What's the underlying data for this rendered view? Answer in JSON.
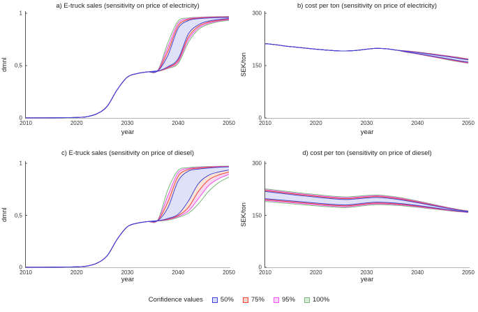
{
  "page": {
    "background": "#ffffff"
  },
  "style": {
    "y_axis_color": "#555555",
    "x_axis_color": "#b5b5b5",
    "text_color": "#222222",
    "band_fills": {
      "50%": "#dfe1f8",
      "75%": "#fae4d6",
      "95%": "#fad7f0",
      "100%": "#ffffff"
    }
  },
  "legend": {
    "title": "Confidence values",
    "items": [
      {
        "label": "50%",
        "color": "#4343d6",
        "swatch_fill": "#d9dbf8"
      },
      {
        "label": "75%",
        "color": "#ec4437",
        "swatch_fill": "#fad3cf"
      },
      {
        "label": "95%",
        "color": "#ea52ea",
        "swatch_fill": "#fad6f8"
      },
      {
        "label": "100%",
        "color": "#7cb87c",
        "swatch_fill": "#d9ecd9"
      }
    ]
  },
  "chart_data": [
    {
      "id": "a",
      "type": "line",
      "title": "a) E-truck sales (sensitivity on price of electricity)",
      "xlabel": "year",
      "ylabel": "dmnl",
      "xlim": [
        2010,
        2050
      ],
      "ylim": [
        0,
        1
      ],
      "xtick_values": [
        2010,
        2020,
        2030,
        2040,
        2050
      ],
      "xtick_labels": [
        "2010",
        "2020",
        "2030",
        "2040",
        "2050"
      ],
      "ytick_values": [
        0,
        0.5,
        1
      ],
      "ytick_labels": [
        "0",
        "0,5",
        "1"
      ],
      "years": [
        2010,
        2012,
        2014,
        2016,
        2018,
        2020,
        2022,
        2024,
        2026,
        2028,
        2030,
        2032,
        2034,
        2036,
        2038,
        2040,
        2042,
        2044,
        2046,
        2048,
        2050
      ],
      "base": [
        0.001,
        0.001,
        0.001,
        0.002,
        0.003,
        0.005,
        0.012,
        0.04,
        0.11,
        0.27,
        0.39,
        0.425,
        0.44,
        0.45
      ],
      "bands": [
        {
          "level": "100%",
          "upper": [
            0.456,
            0.72,
            0.925,
            0.954,
            0.962,
            0.966,
            0.968,
            0.97
          ],
          "lower": [
            0.445,
            0.473,
            0.52,
            0.72,
            0.845,
            0.895,
            0.92,
            0.932
          ]
        },
        {
          "level": "95%",
          "upper": [
            0.454,
            0.68,
            0.905,
            0.948,
            0.958,
            0.963,
            0.966,
            0.967
          ],
          "lower": [
            0.446,
            0.478,
            0.535,
            0.745,
            0.86,
            0.905,
            0.926,
            0.938
          ]
        },
        {
          "level": "75%",
          "upper": [
            0.452,
            0.64,
            0.88,
            0.94,
            0.953,
            0.959,
            0.962,
            0.964
          ],
          "lower": [
            0.447,
            0.483,
            0.55,
            0.77,
            0.875,
            0.915,
            0.933,
            0.944
          ]
        },
        {
          "level": "50%",
          "upper": [
            0.45,
            0.6,
            0.855,
            0.93,
            0.948,
            0.955,
            0.958,
            0.96
          ],
          "lower": [
            0.448,
            0.49,
            0.565,
            0.8,
            0.89,
            0.925,
            0.94,
            0.95
          ]
        }
      ]
    },
    {
      "id": "b",
      "type": "line",
      "title": "b) cost per ton (sensitivity on price of electricity)",
      "xlabel": "year",
      "ylabel": "SEK/ton",
      "xlim": [
        2010,
        2050
      ],
      "ylim": [
        0,
        300
      ],
      "xtick_values": [
        2010,
        2020,
        2030,
        2040,
        2050
      ],
      "xtick_labels": [
        "2010",
        "2020",
        "2030",
        "2040",
        "2050"
      ],
      "ytick_values": [
        0,
        150,
        300
      ],
      "ytick_labels": [
        "0",
        "150",
        "300"
      ],
      "years": [
        2010,
        2012,
        2014,
        2016,
        2018,
        2020,
        2022,
        2024,
        2026,
        2028,
        2030,
        2032,
        2034,
        2036,
        2038,
        2040,
        2042,
        2044,
        2046,
        2048,
        2050
      ],
      "base": [
        213,
        210,
        206,
        203,
        200,
        197,
        194.5,
        192.5,
        192,
        193.5,
        197,
        199.5,
        198,
        194
      ],
      "bands": [
        {
          "level": "100%",
          "upper": [
            194,
            192,
            189,
            185.5,
            181.8,
            178,
            174,
            169.5
          ],
          "lower": [
            194,
            188,
            183.2,
            177.6,
            172.2,
            166.6,
            161.3,
            156.7
          ]
        },
        {
          "level": "95%",
          "upper": [
            194,
            191.8,
            188.6,
            185,
            181.2,
            177.4,
            173.2,
            168.7
          ],
          "lower": [
            194,
            188.2,
            183.5,
            178.1,
            172.8,
            167.4,
            162.2,
            157.6
          ]
        },
        {
          "level": "75%",
          "upper": [
            194,
            191.4,
            188.1,
            184.3,
            180.4,
            176.5,
            172.2,
            167.7
          ],
          "lower": [
            194,
            188.6,
            184,
            178.8,
            173.6,
            168.4,
            163.3,
            158.8
          ]
        },
        {
          "level": "50%",
          "upper": [
            194,
            191,
            187.5,
            183.5,
            179.5,
            175.5,
            171,
            166.5
          ],
          "lower": [
            194,
            189,
            184.5,
            179.5,
            174.5,
            169.5,
            164.5,
            160
          ]
        }
      ]
    },
    {
      "id": "c",
      "type": "line",
      "title": "c) E-truck sales (sensitivity on price of diesel)",
      "xlabel": "year",
      "ylabel": "dmnl",
      "xlim": [
        2010,
        2050
      ],
      "ylim": [
        0,
        1
      ],
      "xtick_values": [
        2010,
        2020,
        2030,
        2040,
        2050
      ],
      "xtick_labels": [
        "2010",
        "2020",
        "2030",
        "2040",
        "2050"
      ],
      "ytick_values": [
        0,
        0.5,
        1
      ],
      "ytick_labels": [
        "0",
        "0,5",
        "1"
      ],
      "years": [
        2010,
        2012,
        2014,
        2016,
        2018,
        2020,
        2022,
        2024,
        2026,
        2028,
        2030,
        2032,
        2034,
        2036,
        2038,
        2040,
        2042,
        2044,
        2046,
        2048,
        2050
      ],
      "base": [
        0.001,
        0.001,
        0.001,
        0.002,
        0.003,
        0.005,
        0.012,
        0.04,
        0.11,
        0.27,
        0.39,
        0.425,
        0.44,
        0.45
      ],
      "bands": [
        {
          "level": "100%",
          "upper": [
            0.456,
            0.75,
            0.932,
            0.958,
            0.966,
            0.97,
            0.972,
            0.973
          ],
          "lower": [
            0.445,
            0.454,
            0.48,
            0.52,
            0.61,
            0.73,
            0.815,
            0.868
          ]
        },
        {
          "level": "95%",
          "upper": [
            0.454,
            0.69,
            0.91,
            0.95,
            0.96,
            0.966,
            0.97,
            0.971
          ],
          "lower": [
            0.446,
            0.459,
            0.488,
            0.54,
            0.66,
            0.785,
            0.853,
            0.893
          ]
        },
        {
          "level": "75%",
          "upper": [
            0.452,
            0.63,
            0.875,
            0.94,
            0.953,
            0.961,
            0.966,
            0.969
          ],
          "lower": [
            0.447,
            0.464,
            0.497,
            0.575,
            0.73,
            0.84,
            0.888,
            0.915
          ]
        },
        {
          "level": "50%",
          "upper": [
            0.45,
            0.575,
            0.83,
            0.925,
            0.945,
            0.955,
            0.962,
            0.966
          ],
          "lower": [
            0.448,
            0.47,
            0.51,
            0.635,
            0.805,
            0.885,
            0.917,
            0.935
          ]
        }
      ]
    },
    {
      "id": "d",
      "type": "line",
      "title": "d) cost per ton (sensitivity on price of diesel)",
      "xlabel": "year",
      "ylabel": "SEK/ton",
      "xlim": [
        2010,
        2050
      ],
      "ylim": [
        0,
        300
      ],
      "xtick_values": [
        2010,
        2020,
        2030,
        2040,
        2050
      ],
      "xtick_labels": [
        "2010",
        "2020",
        "2030",
        "2040",
        "2050"
      ],
      "ytick_values": [
        0,
        150,
        300
      ],
      "ytick_labels": [
        "0",
        "150",
        "300"
      ],
      "years": [
        2010,
        2012,
        2014,
        2016,
        2018,
        2020,
        2022,
        2024,
        2026,
        2028,
        2030,
        2032,
        2034,
        2036,
        2038,
        2040,
        2042,
        2044,
        2046,
        2048,
        2050
      ],
      "base": null,
      "bands": [
        {
          "level": "100%",
          "upper": [
            226.5,
            223,
            219.5,
            216,
            213,
            210,
            207,
            204.5,
            203,
            205,
            207.3,
            208.5,
            206.5,
            202.5,
            197.3,
            191.5,
            185.3,
            179,
            172.8,
            167.2,
            162.8
          ],
          "lower": [
            190,
            187.5,
            185,
            182.5,
            180,
            177.5,
            175.2,
            173.3,
            172.3,
            175.2,
            178.8,
            181,
            180.3,
            178.8,
            176.3,
            173.3,
            170,
            166.8,
            163.5,
            160.5,
            158.2
          ]
        },
        {
          "level": "95%",
          "upper": [
            224,
            220.5,
            217,
            213.5,
            210.5,
            207.5,
            204.5,
            202,
            200.5,
            202.5,
            205,
            206.3,
            204.3,
            200.5,
            195.5,
            190,
            184,
            178,
            172,
            166.5,
            162.4
          ],
          "lower": [
            193,
            190.5,
            188,
            185.5,
            183,
            180.5,
            178,
            176,
            175,
            177.8,
            181.3,
            183.3,
            182.5,
            180.8,
            178.2,
            175,
            171.5,
            168,
            164.5,
            161.2,
            158.6
          ]
        },
        {
          "level": "75%",
          "upper": [
            221.5,
            218,
            214.5,
            211,
            208,
            205,
            202,
            199.5,
            198,
            200,
            202.5,
            204,
            202,
            198.3,
            193.5,
            188.3,
            182.5,
            176.8,
            171,
            165.8,
            162
          ],
          "lower": [
            195.5,
            193,
            190.5,
            188,
            185.5,
            183,
            180.5,
            178.5,
            177.5,
            180,
            183.5,
            185.5,
            184.7,
            182.8,
            180,
            176.7,
            173,
            169.2,
            165.5,
            161.8,
            159
          ]
        },
        {
          "level": "50%",
          "upper": [
            219,
            215.5,
            212,
            208.5,
            205.5,
            202.5,
            199.5,
            197,
            195.5,
            197.5,
            200,
            201.5,
            199.5,
            196,
            191.5,
            186.5,
            181,
            175.5,
            170,
            165,
            161.5
          ],
          "lower": [
            198,
            195.5,
            193,
            190.5,
            188,
            185.5,
            183,
            181,
            180,
            182.5,
            186,
            188,
            187,
            185,
            182,
            178.5,
            174.5,
            170.5,
            166.5,
            162.5,
            159.5
          ]
        }
      ]
    }
  ]
}
